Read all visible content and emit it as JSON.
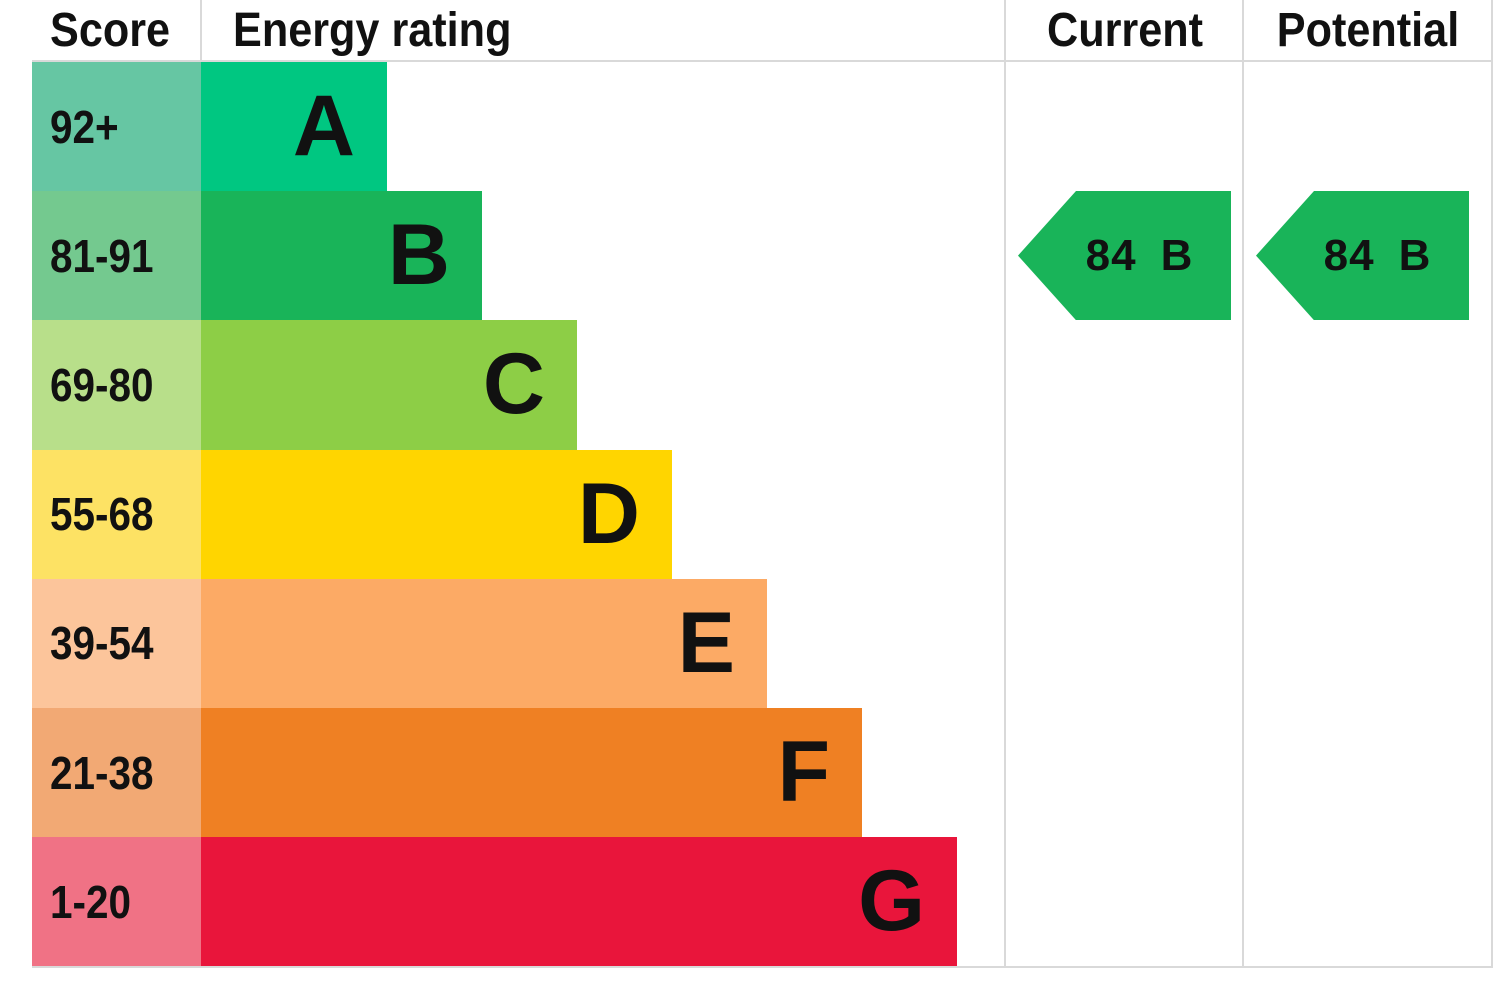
{
  "chart_data": {
    "type": "table",
    "headers": {
      "score": "Score",
      "rating": "Energy rating",
      "current": "Current",
      "potential": "Potential"
    },
    "bands": [
      {
        "letter": "A",
        "range": "92+",
        "color": "#00c781",
        "score_color": "#66c6a3"
      },
      {
        "letter": "B",
        "range": "81-91",
        "color": "#19b459",
        "score_color": "#74c98f"
      },
      {
        "letter": "C",
        "range": "69-80",
        "color": "#8dce46",
        "score_color": "#b8df8a"
      },
      {
        "letter": "D",
        "range": "55-68",
        "color": "#ffd500",
        "score_color": "#fde264"
      },
      {
        "letter": "E",
        "range": "39-54",
        "color": "#fcaa65",
        "score_color": "#fcc59b"
      },
      {
        "letter": "F",
        "range": "21-38",
        "color": "#ef8023",
        "score_color": "#f2a974"
      },
      {
        "letter": "G",
        "range": "1-20",
        "color": "#e9153b",
        "score_color": "#f07285"
      }
    ],
    "current": {
      "score": 84,
      "letter": "B",
      "color": "#19b459"
    },
    "potential": {
      "score": 84,
      "letter": "B",
      "color": "#19b459"
    }
  }
}
